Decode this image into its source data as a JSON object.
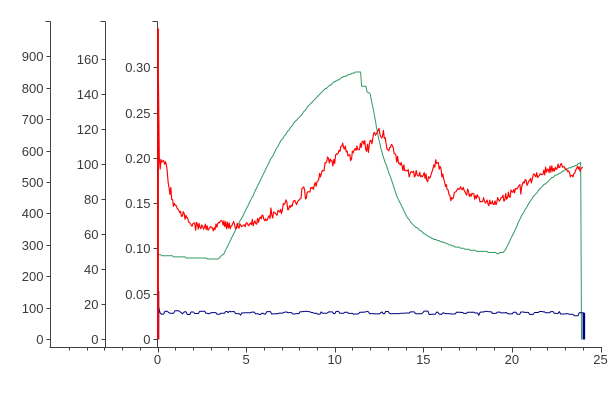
{
  "colors": {
    "red": "#FF0000",
    "green": "#339966",
    "navy": "#000080",
    "axis": "#404040",
    "text": "#3a3a3a",
    "background": "#FFFFFF"
  },
  "chart_data": {
    "type": "line",
    "title": "",
    "legend_position": "none",
    "grid": false,
    "x_axis": {
      "range": [
        0,
        25
      ],
      "major_ticks": [
        0,
        5,
        10,
        15,
        20,
        25
      ],
      "tick_labels": [
        "0",
        "5",
        "10",
        "15",
        "20",
        "25"
      ],
      "minor_tick_step": 1,
      "minor_tick_range": [
        -5,
        25
      ]
    },
    "y_axes": [
      {
        "id": "y-axis-outer-left",
        "range": [
          0,
          900
        ],
        "tick_values": [
          0,
          100,
          200,
          300,
          400,
          500,
          600,
          700,
          800,
          900
        ],
        "tick_labels": [
          "0",
          "100",
          "200",
          "300",
          "400",
          "500",
          "600",
          "700",
          "800",
          "900"
        ]
      },
      {
        "id": "y-axis-middle-left",
        "range": [
          0,
          160
        ],
        "tick_values": [
          0,
          20,
          40,
          60,
          80,
          100,
          120,
          140,
          160
        ],
        "tick_labels": [
          "0",
          "20",
          "40",
          "60",
          "80",
          "100",
          "120",
          "140",
          "160"
        ]
      },
      {
        "id": "y-axis-inner-left",
        "range": [
          0,
          0.3
        ],
        "tick_values": [
          0,
          0.05,
          0.1,
          0.15,
          0.2,
          0.25,
          0.3
        ],
        "tick_labels": [
          "0",
          "0.05",
          "0.10",
          "0.15",
          "0.20",
          "0.25",
          "0.30"
        ]
      }
    ],
    "series": [
      {
        "name": "green-smooth-curve",
        "color_key": "green",
        "width": 1,
        "quantize": 0.0012,
        "points": [
          [
            0,
            0.0935
          ],
          [
            0.6,
            0.0922
          ],
          [
            1.2,
            0.0912
          ],
          [
            1.8,
            0.0903
          ],
          [
            2.4,
            0.0897
          ],
          [
            3.0,
            0.0892
          ],
          [
            3.44,
            0.0894
          ],
          [
            3.75,
            0.0945
          ],
          [
            4.12,
            0.1093
          ],
          [
            4.55,
            0.1265
          ],
          [
            4.97,
            0.1424
          ],
          [
            5.4,
            0.159
          ],
          [
            5.81,
            0.1755
          ],
          [
            6.2,
            0.192
          ],
          [
            6.66,
            0.2086
          ],
          [
            7.0,
            0.2205
          ],
          [
            7.39,
            0.2307
          ],
          [
            7.7,
            0.239
          ],
          [
            8.0,
            0.245
          ],
          [
            8.5,
            0.2575
          ],
          [
            9.0,
            0.268
          ],
          [
            9.5,
            0.277
          ],
          [
            10.0,
            0.2845
          ],
          [
            10.5,
            0.29
          ],
          [
            11.0,
            0.294
          ],
          [
            11.35,
            0.2955
          ],
          [
            11.48,
            0.2945
          ],
          [
            11.52,
            0.2795
          ],
          [
            11.75,
            0.28
          ],
          [
            11.82,
            0.2735
          ],
          [
            12.0,
            0.2715
          ],
          [
            12.2,
            0.252
          ],
          [
            12.4,
            0.23
          ],
          [
            12.6,
            0.211
          ],
          [
            12.8,
            0.198
          ],
          [
            12.96,
            0.19
          ],
          [
            13.2,
            0.176
          ],
          [
            13.53,
            0.157
          ],
          [
            13.8,
            0.146
          ],
          [
            14.09,
            0.135
          ],
          [
            14.4,
            0.127
          ],
          [
            14.84,
            0.12
          ],
          [
            15.2,
            0.115
          ],
          [
            15.6,
            0.111
          ],
          [
            16.0,
            0.108
          ],
          [
            16.35,
            0.1056
          ],
          [
            16.7,
            0.103
          ],
          [
            17.1,
            0.1012
          ],
          [
            17.5,
            0.0995
          ],
          [
            17.85,
            0.098
          ],
          [
            18.3,
            0.097
          ],
          [
            18.8,
            0.0964
          ],
          [
            19.2,
            0.0952
          ],
          [
            19.5,
            0.0958
          ],
          [
            19.7,
            0.101
          ],
          [
            19.9,
            0.1093
          ],
          [
            20.5,
            0.1347
          ],
          [
            21.05,
            0.1534
          ],
          [
            21.5,
            0.1645
          ],
          [
            21.9,
            0.1722
          ],
          [
            22.3,
            0.179
          ],
          [
            22.75,
            0.1843
          ],
          [
            23.2,
            0.189
          ],
          [
            23.6,
            0.192
          ],
          [
            23.9,
            0.1955
          ],
          [
            23.93,
            0.0005
          ]
        ]
      },
      {
        "name": "navy-noisy-flat-line",
        "color_key": "navy",
        "width": 1,
        "noise": {
          "amp": 0.0017,
          "step": 0.07,
          "mode": "square"
        },
        "points": [
          [
            0,
            0
          ],
          [
            0.04,
            0.0535
          ],
          [
            0.08,
            0.0295
          ],
          [
            2,
            0.0293
          ],
          [
            4,
            0.0296
          ],
          [
            6,
            0.0291
          ],
          [
            8,
            0.0295
          ],
          [
            10,
            0.0293
          ],
          [
            12,
            0.0296
          ],
          [
            14,
            0.0294
          ],
          [
            16,
            0.0292
          ],
          [
            18,
            0.0295
          ],
          [
            20,
            0.0294
          ],
          [
            22,
            0.0293
          ],
          [
            24.02,
            0.0295
          ],
          [
            24.05,
            0.0295
          ]
        ],
        "bars": [
          {
            "x": 0.05,
            "v1": 0,
            "v2": 0.0535,
            "w": 1.8
          },
          {
            "x": 24.06,
            "v1": 0,
            "v2": 0.0295,
            "w": 2.6
          }
        ]
      },
      {
        "name": "red-noisy-curve",
        "color_key": "red",
        "width": 1.15,
        "noise": {
          "amp": 0.0042,
          "step": 0.05,
          "mode": "jitter"
        },
        "points": [
          [
            0,
            0
          ],
          [
            0.03,
            0.3433
          ],
          [
            0.06,
            0.26
          ],
          [
            0.09,
            0.21
          ],
          [
            0.13,
            0.172
          ],
          [
            0.18,
            0.205
          ],
          [
            0.23,
            0.192
          ],
          [
            0.3,
            0.2
          ],
          [
            0.38,
            0.196
          ],
          [
            0.46,
            0.192
          ],
          [
            0.55,
            0.185
          ],
          [
            0.62,
            0.174
          ],
          [
            0.7,
            0.163
          ],
          [
            0.8,
            0.155
          ],
          [
            0.9,
            0.151
          ],
          [
            1,
            0.147
          ],
          [
            1.15,
            0.1435
          ],
          [
            1.3,
            0.1405
          ],
          [
            1.5,
            0.136
          ],
          [
            1.7,
            0.1315
          ],
          [
            1.9,
            0.1285
          ],
          [
            2.1,
            0.1262
          ],
          [
            2.35,
            0.1245
          ],
          [
            2.6,
            0.1232
          ],
          [
            2.9,
            0.1236
          ],
          [
            3.2,
            0.1242
          ],
          [
            3.45,
            0.1252
          ],
          [
            3.67,
            0.1315
          ],
          [
            3.8,
            0.1262
          ],
          [
            4.1,
            0.1258
          ],
          [
            4.4,
            0.1262
          ],
          [
            4.7,
            0.1268
          ],
          [
            5,
            0.1276
          ],
          [
            5.25,
            0.1282
          ],
          [
            5.5,
            0.13
          ],
          [
            5.8,
            0.1325
          ],
          [
            6.1,
            0.1345
          ],
          [
            6.38,
            0.137
          ],
          [
            6.7,
            0.1395
          ],
          [
            7,
            0.1428
          ],
          [
            7.2,
            0.152
          ],
          [
            7.35,
            0.1458
          ],
          [
            7.5,
            0.1462
          ],
          [
            7.8,
            0.1505
          ],
          [
            8.07,
            0.156
          ],
          [
            8.2,
            0.168
          ],
          [
            8.35,
            0.158
          ],
          [
            8.5,
            0.1615
          ],
          [
            8.75,
            0.1655
          ],
          [
            9,
            0.1715
          ],
          [
            9.2,
            0.183
          ],
          [
            9.45,
            0.1915
          ],
          [
            9.6,
            0.2035
          ],
          [
            9.75,
            0.1965
          ],
          [
            9.9,
            0.1925
          ],
          [
            10.05,
            0.2
          ],
          [
            10.2,
            0.2075
          ],
          [
            10.45,
            0.2155
          ],
          [
            10.6,
            0.2105
          ],
          [
            10.75,
            0.203
          ],
          [
            10.9,
            0.1985
          ],
          [
            11.05,
            0.2065
          ],
          [
            11.2,
            0.2125
          ],
          [
            11.35,
            0.209
          ],
          [
            11.5,
            0.2155
          ],
          [
            11.65,
            0.2185
          ],
          [
            11.8,
            0.2115
          ],
          [
            11.95,
            0.2145
          ],
          [
            12.1,
            0.2185
          ],
          [
            12.25,
            0.2265
          ],
          [
            12.42,
            0.2335
          ],
          [
            12.52,
            0.229
          ],
          [
            12.62,
            0.2225
          ],
          [
            12.75,
            0.2268
          ],
          [
            12.9,
            0.2158
          ],
          [
            13.05,
            0.2095
          ],
          [
            13.25,
            0.2145
          ],
          [
            13.5,
            0.2
          ],
          [
            13.7,
            0.195
          ],
          [
            14,
            0.186
          ],
          [
            14.3,
            0.1815
          ],
          [
            14.6,
            0.1825
          ],
          [
            14.85,
            0.1832
          ],
          [
            15.1,
            0.18
          ],
          [
            15.3,
            0.1765
          ],
          [
            15.45,
            0.1832
          ],
          [
            15.69,
            0.1952
          ],
          [
            15.85,
            0.1912
          ],
          [
            16,
            0.1852
          ],
          [
            16.2,
            0.1752
          ],
          [
            16.42,
            0.1645
          ],
          [
            16.54,
            0.1558
          ],
          [
            16.7,
            0.1592
          ],
          [
            16.85,
            0.1622
          ],
          [
            17,
            0.1655
          ],
          [
            17.15,
            0.1682
          ],
          [
            17.3,
            0.1642
          ],
          [
            17.5,
            0.1622
          ],
          [
            17.7,
            0.1602
          ],
          [
            17.9,
            0.1585
          ],
          [
            18.1,
            0.1568
          ],
          [
            18.3,
            0.1552
          ],
          [
            18.55,
            0.1532
          ],
          [
            18.8,
            0.1502
          ],
          [
            19,
            0.1512
          ],
          [
            19.2,
            0.1532
          ],
          [
            19.45,
            0.1558
          ],
          [
            19.7,
            0.1582
          ],
          [
            19.95,
            0.1612
          ],
          [
            20.2,
            0.1645
          ],
          [
            20.45,
            0.1682
          ],
          [
            20.7,
            0.1715
          ],
          [
            20.95,
            0.1748
          ],
          [
            21.2,
            0.1782
          ],
          [
            21.45,
            0.1812
          ],
          [
            21.7,
            0.1842
          ],
          [
            21.95,
            0.1865
          ],
          [
            22.2,
            0.1885
          ],
          [
            22.45,
            0.1902
          ],
          [
            22.7,
            0.1912
          ],
          [
            22.95,
            0.1918
          ],
          [
            23.15,
            0.1895
          ],
          [
            23.35,
            0.1782
          ],
          [
            23.5,
            0.1862
          ],
          [
            23.7,
            0.1912
          ],
          [
            23.85,
            0.1878
          ],
          [
            24,
            0.1902
          ]
        ],
        "bars": [
          {
            "x": 0.03,
            "v1": 0,
            "v2": 0.3433,
            "w": 1.8
          }
        ]
      }
    ]
  }
}
